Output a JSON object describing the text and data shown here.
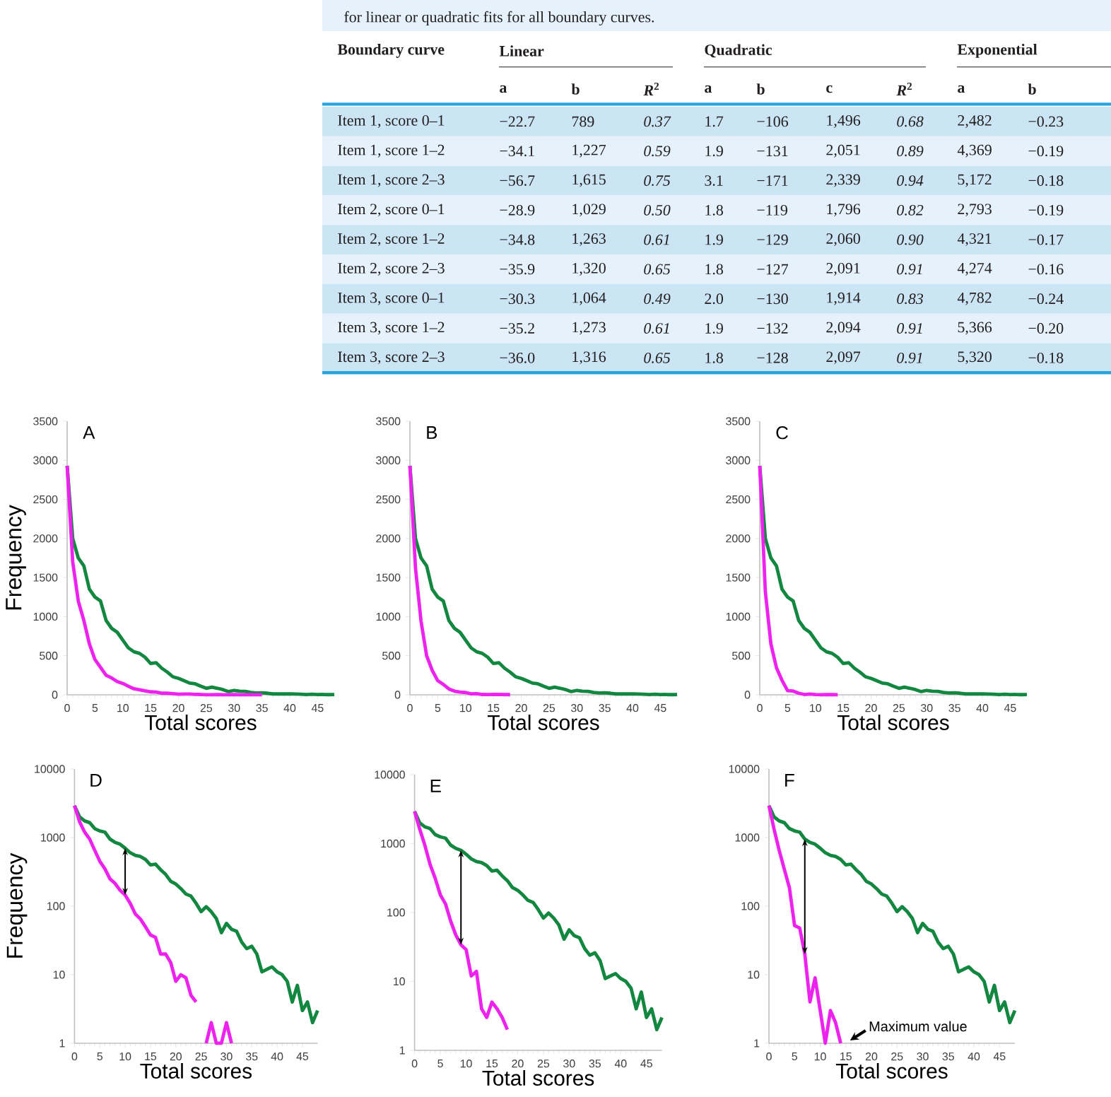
{
  "chart_data": [
    {
      "type": "other",
      "title": "for linear or quadratic fits for all boundary curves.",
      "annotations": [
        "Boundary curve",
        "Linear",
        "Quadratic",
        "Exponential",
        "a",
        "b",
        "*R*$^{2}$",
        "a",
        "b",
        "c",
        "*R*$^{2}$",
        "a",
        "b",
        "Item 1, score 0–1",
        "−22.7",
        "789",
        "0.37",
        "1.7",
        "−106",
        "1,496",
        "0.68",
        "2,482",
        "−0.23",
        "Item 1, score 1–2",
        "−34.1",
        "1,227",
        "0.59",
        "1.9",
        "−131",
        "2,051",
        "0.89",
        "4,369",
        "−0.19",
        "Item 1, score 2–3",
        "−56.7",
        "1,615",
        "0.75",
        "3.1",
        "−171",
        "2,339",
        "0.94",
        "5,172",
        "−0.18",
        "Item 2, score 0–1",
        "−28.9",
        "1,029",
        "0.50",
        "1.8",
        "−119",
        "1,796",
        "0.82",
        "2,793",
        "−0.19",
        "Item 2, score 1–2",
        "−34.8",
        "1,263",
        "0.61",
        "1.9",
        "−129",
        "2,060",
        "0.90",
        "4,321",
        "−0.17",
        "Item 2, score 2–3",
        "−35.9",
        "1,320",
        "0.65",
        "1.8",
        "−127",
        "2,091",
        "0.91",
        "4,274",
        "−0.16",
        "Item 3, score 0–1",
        "−30.3",
        "1,064",
        "0.49",
        "2.0",
        "−130",
        "1,914",
        "0.83",
        "4,782",
        "−0.24",
        "Item 3, score 1–2",
        "−35.2",
        "1,273",
        "0.61",
        "1.9",
        "−132",
        "2,094",
        "0.91",
        "5,366",
        "−0.20",
        "Item 3, score 2–3",
        "−36.0",
        "1,316",
        "0.65",
        "1.8",
        "−128",
        "2,097",
        "0.91",
        "5,320",
        "−0.18"
      ]
    },
    {
      "type": "line",
      "title": "A",
      "xlabel": "Total scores",
      "ylabel": "Frequency",
      "xlim": [
        0,
        48
      ],
      "xticks": [
        0,
        5,
        10,
        15,
        20,
        25,
        30,
        35,
        40,
        45
      ],
      "ylim": [
        0,
        3500
      ],
      "yticks": [
        0,
        500,
        1000,
        1500,
        2000,
        2500,
        3000,
        3500
      ],
      "x": [
        0,
        1,
        2,
        3,
        4,
        5,
        6,
        7,
        8,
        9,
        10,
        11,
        12,
        13,
        14,
        15,
        16,
        17,
        18,
        19,
        20,
        21,
        22,
        23,
        24,
        25,
        26,
        27,
        28,
        29,
        30,
        31,
        32,
        33,
        34,
        35,
        36,
        37,
        38,
        39,
        40,
        41,
        42,
        43,
        44,
        45,
        46,
        47,
        48
      ],
      "series": [
        {
          "color": "#12873f",
          "values": [
            2930,
            2000,
            1750,
            1650,
            1350,
            1250,
            1200,
            950,
            850,
            800,
            700,
            600,
            550,
            530,
            480,
            400,
            410,
            340,
            290,
            230,
            210,
            180,
            150,
            140,
            110,
            83,
            98,
            83,
            66,
            41,
            56,
            46,
            43,
            30,
            24,
            26,
            20,
            11,
            12,
            13,
            11,
            10,
            8,
            4,
            7,
            3,
            4,
            2,
            3
          ]
        },
        {
          "color": "#ee22ee",
          "x": [
            0,
            1,
            2,
            3,
            4,
            5,
            6,
            7,
            8,
            9,
            10,
            11,
            12,
            13,
            14,
            15,
            16,
            17,
            18,
            19,
            20,
            21,
            22,
            23,
            24,
            25,
            26,
            27,
            28,
            29,
            30,
            31,
            32,
            33,
            34,
            35
          ],
          "values": [
            2930,
            1700,
            1200,
            950,
            650,
            450,
            350,
            250,
            215,
            170,
            145,
            110,
            77,
            65,
            50,
            38,
            35,
            20,
            20,
            15,
            8,
            10,
            9,
            5,
            4,
            0,
            1,
            2,
            1,
            1,
            2,
            1,
            0,
            0,
            0,
            0
          ]
        }
      ]
    },
    {
      "type": "line",
      "title": "B",
      "xlabel": "Total scores",
      "xlim": [
        0,
        48
      ],
      "xticks": [
        0,
        5,
        10,
        15,
        20,
        25,
        30,
        35,
        40,
        45
      ],
      "ylim": [
        0,
        3500
      ],
      "yticks": [
        0,
        500,
        1000,
        1500,
        2000,
        2500,
        3000,
        3500
      ],
      "x": [
        0,
        1,
        2,
        3,
        4,
        5,
        6,
        7,
        8,
        9,
        10,
        11,
        12,
        13,
        14,
        15,
        16,
        17,
        18,
        19,
        20,
        21,
        22,
        23,
        24,
        25,
        26,
        27,
        28,
        29,
        30,
        31,
        32,
        33,
        34,
        35,
        36,
        37,
        38,
        39,
        40,
        41,
        42,
        43,
        44,
        45,
        46,
        47,
        48
      ],
      "series": [
        {
          "color": "#12873f",
          "values": [
            2930,
            2000,
            1750,
            1650,
            1350,
            1250,
            1200,
            950,
            850,
            800,
            700,
            600,
            550,
            530,
            480,
            400,
            410,
            340,
            290,
            230,
            210,
            180,
            150,
            140,
            110,
            83,
            98,
            83,
            66,
            41,
            56,
            46,
            43,
            30,
            24,
            26,
            20,
            11,
            12,
            13,
            11,
            10,
            8,
            4,
            7,
            3,
            4,
            2,
            3
          ]
        },
        {
          "color": "#ee22ee",
          "x": [
            0,
            1,
            2,
            3,
            4,
            5,
            6,
            7,
            8,
            9,
            10,
            11,
            12,
            13,
            14,
            15,
            16,
            17,
            18
          ],
          "values": [
            2930,
            1620,
            940,
            500,
            313,
            180,
            133,
            75,
            47,
            34,
            29,
            12,
            14,
            4,
            3,
            5,
            4,
            3,
            2
          ]
        }
      ]
    },
    {
      "type": "line",
      "title": "C",
      "xlabel": "Total scores",
      "xlim": [
        0,
        48
      ],
      "xticks": [
        0,
        5,
        10,
        15,
        20,
        25,
        30,
        35,
        40,
        45
      ],
      "ylim": [
        0,
        3500
      ],
      "yticks": [
        0,
        500,
        1000,
        1500,
        2000,
        2500,
        3000,
        3500
      ],
      "x": [
        0,
        1,
        2,
        3,
        4,
        5,
        6,
        7,
        8,
        9,
        10,
        11,
        12,
        13,
        14,
        15,
        16,
        17,
        18,
        19,
        20,
        21,
        22,
        23,
        24,
        25,
        26,
        27,
        28,
        29,
        30,
        31,
        32,
        33,
        34,
        35,
        36,
        37,
        38,
        39,
        40,
        41,
        42,
        43,
        44,
        45,
        46,
        47,
        48
      ],
      "series": [
        {
          "color": "#12873f",
          "values": [
            2930,
            2000,
            1750,
            1650,
            1350,
            1250,
            1200,
            950,
            850,
            800,
            700,
            600,
            550,
            530,
            480,
            400,
            410,
            340,
            290,
            230,
            210,
            180,
            150,
            140,
            110,
            83,
            98,
            83,
            66,
            41,
            56,
            46,
            43,
            30,
            24,
            26,
            20,
            11,
            12,
            13,
            11,
            10,
            8,
            4,
            7,
            3,
            4,
            2,
            3
          ]
        },
        {
          "color": "#ee22ee",
          "x": [
            0,
            1,
            2,
            3,
            4,
            5,
            6,
            7,
            8,
            9,
            10,
            11,
            12,
            13,
            14
          ],
          "values": [
            2930,
            1320,
            650,
            345,
            185,
            52,
            48,
            20,
            4,
            9,
            3,
            1,
            3,
            2,
            1
          ]
        }
      ]
    },
    {
      "type": "line",
      "title": "D",
      "xlabel": "Total scores",
      "ylabel": "Frequency",
      "log": true,
      "xlim": [
        0,
        48
      ],
      "xticks": [
        0,
        5,
        10,
        15,
        20,
        25,
        30,
        35,
        40,
        45
      ],
      "ylim": [
        1,
        10000
      ],
      "yticks": [
        1,
        10,
        100,
        1000,
        10000
      ],
      "x": [
        0,
        1,
        2,
        3,
        4,
        5,
        6,
        7,
        8,
        9,
        10,
        11,
        12,
        13,
        14,
        15,
        16,
        17,
        18,
        19,
        20,
        21,
        22,
        23,
        24,
        25,
        26,
        27,
        28,
        29,
        30,
        31,
        32,
        33,
        34,
        35,
        36,
        37,
        38,
        39,
        40,
        41,
        42,
        43,
        44,
        45,
        46,
        47,
        48
      ],
      "series": [
        {
          "color": "#12873f",
          "values": [
            2930,
            2000,
            1750,
            1650,
            1350,
            1250,
            1200,
            950,
            850,
            800,
            700,
            600,
            550,
            530,
            480,
            400,
            410,
            340,
            290,
            230,
            210,
            180,
            150,
            140,
            110,
            83,
            98,
            83,
            66,
            41,
            56,
            46,
            43,
            30,
            24,
            26,
            20,
            11,
            12,
            13,
            11,
            10,
            8,
            4,
            7,
            3,
            4,
            2,
            3
          ]
        },
        {
          "color": "#ee22ee",
          "x": [
            0,
            1,
            2,
            3,
            4,
            5,
            6,
            7,
            8,
            9,
            10,
            11,
            12,
            13,
            14,
            15,
            16,
            17,
            18,
            19,
            20,
            21,
            22,
            23,
            24,
            25,
            26,
            27,
            28,
            29,
            30,
            31
          ],
          "values": [
            2930,
            1700,
            1200,
            950,
            650,
            450,
            350,
            250,
            215,
            170,
            145,
            110,
            77,
            65,
            50,
            38,
            35,
            20,
            20,
            15,
            8,
            10,
            9,
            5,
            4,
            null,
            1,
            2,
            1,
            1,
            2,
            1
          ]
        }
      ]
    },
    {
      "type": "line",
      "title": "E",
      "xlabel": "Total scores",
      "log": true,
      "xlim": [
        0,
        48
      ],
      "xticks": [
        0,
        5,
        10,
        15,
        20,
        25,
        30,
        35,
        40,
        45
      ],
      "ylim": [
        1,
        10000
      ],
      "yticks": [
        1,
        10,
        100,
        1000,
        10000
      ],
      "x": [
        0,
        1,
        2,
        3,
        4,
        5,
        6,
        7,
        8,
        9,
        10,
        11,
        12,
        13,
        14,
        15,
        16,
        17,
        18,
        19,
        20,
        21,
        22,
        23,
        24,
        25,
        26,
        27,
        28,
        29,
        30,
        31,
        32,
        33,
        34,
        35,
        36,
        37,
        38,
        39,
        40,
        41,
        42,
        43,
        44,
        45,
        46,
        47,
        48
      ],
      "series": [
        {
          "color": "#12873f",
          "values": [
            2930,
            2000,
            1750,
            1650,
            1350,
            1250,
            1200,
            950,
            850,
            800,
            700,
            600,
            550,
            530,
            480,
            400,
            410,
            340,
            290,
            230,
            210,
            180,
            150,
            140,
            110,
            83,
            98,
            83,
            66,
            41,
            56,
            46,
            43,
            30,
            24,
            26,
            20,
            11,
            12,
            13,
            11,
            10,
            8,
            4,
            7,
            3,
            4,
            2,
            3
          ]
        },
        {
          "color": "#ee22ee",
          "x": [
            0,
            1,
            2,
            3,
            4,
            5,
            6,
            7,
            8,
            9,
            10,
            11,
            12,
            13,
            14,
            15,
            16,
            17,
            18
          ],
          "values": [
            2930,
            1620,
            940,
            500,
            313,
            180,
            133,
            75,
            47,
            34,
            29,
            12,
            14,
            4,
            3,
            5,
            4,
            3,
            2
          ]
        }
      ]
    },
    {
      "type": "line",
      "title": "F",
      "xlabel": "Total scores",
      "log": true,
      "xlim": [
        0,
        48
      ],
      "xticks": [
        0,
        5,
        10,
        15,
        20,
        25,
        30,
        35,
        40,
        45
      ],
      "ylim": [
        1,
        10000
      ],
      "yticks": [
        1,
        10,
        100,
        1000,
        10000
      ],
      "annotations": [
        {
          "text": "Maximum value",
          "x": 15,
          "y": 1
        }
      ],
      "x": [
        0,
        1,
        2,
        3,
        4,
        5,
        6,
        7,
        8,
        9,
        10,
        11,
        12,
        13,
        14,
        15,
        16,
        17,
        18,
        19,
        20,
        21,
        22,
        23,
        24,
        25,
        26,
        27,
        28,
        29,
        30,
        31,
        32,
        33,
        34,
        35,
        36,
        37,
        38,
        39,
        40,
        41,
        42,
        43,
        44,
        45,
        46,
        47,
        48
      ],
      "series": [
        {
          "color": "#12873f",
          "values": [
            2930,
            2000,
            1750,
            1650,
            1350,
            1250,
            1200,
            950,
            850,
            800,
            700,
            600,
            550,
            530,
            480,
            400,
            410,
            340,
            290,
            230,
            210,
            180,
            150,
            140,
            110,
            83,
            98,
            83,
            66,
            41,
            56,
            46,
            43,
            30,
            24,
            26,
            20,
            11,
            12,
            13,
            11,
            10,
            8,
            4,
            7,
            3,
            4,
            2,
            3
          ]
        },
        {
          "color": "#ee22ee",
          "x": [
            0,
            1,
            2,
            3,
            4,
            5,
            6,
            7,
            8,
            9,
            10,
            11,
            12,
            13,
            14
          ],
          "values": [
            2930,
            1320,
            650,
            345,
            185,
            52,
            48,
            20,
            4,
            9,
            3,
            1,
            3,
            2,
            1
          ]
        }
      ]
    }
  ]
}
